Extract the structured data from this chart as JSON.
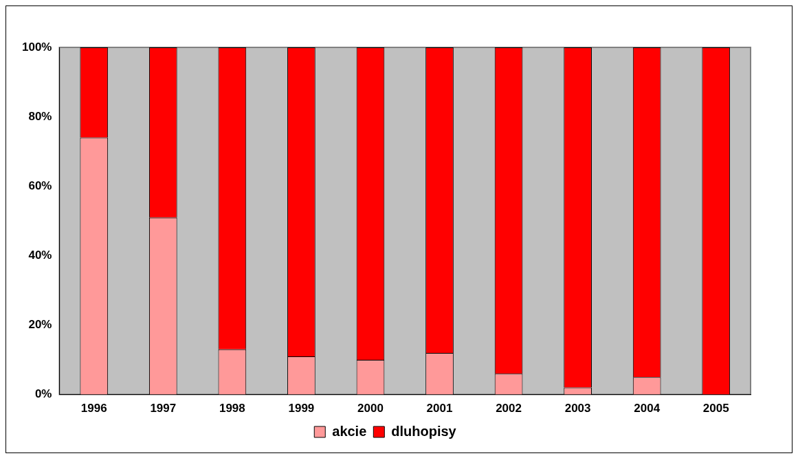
{
  "chart_data": {
    "type": "bar",
    "stacked": true,
    "categories": [
      "1996",
      "1997",
      "1998",
      "1999",
      "2000",
      "2001",
      "2002",
      "2003",
      "2004",
      "2005"
    ],
    "series": [
      {
        "name": "akcie",
        "color": "#ff9999",
        "values": [
          74,
          51,
          13,
          11,
          10,
          12,
          6,
          2,
          5,
          0
        ]
      },
      {
        "name": "dluhopisy",
        "color": "#ff0000",
        "values": [
          26,
          49,
          87,
          89,
          90,
          88,
          94,
          98,
          95,
          100
        ]
      }
    ],
    "ylim": [
      0,
      100
    ],
    "yticks": [
      {
        "value": 0,
        "label": "0%"
      },
      {
        "value": 20,
        "label": "20%"
      },
      {
        "value": 40,
        "label": "40%"
      },
      {
        "value": 60,
        "label": "60%"
      },
      {
        "value": 80,
        "label": "80%"
      },
      {
        "value": 100,
        "label": "100%"
      }
    ],
    "grid": false,
    "legend": "bottom"
  }
}
